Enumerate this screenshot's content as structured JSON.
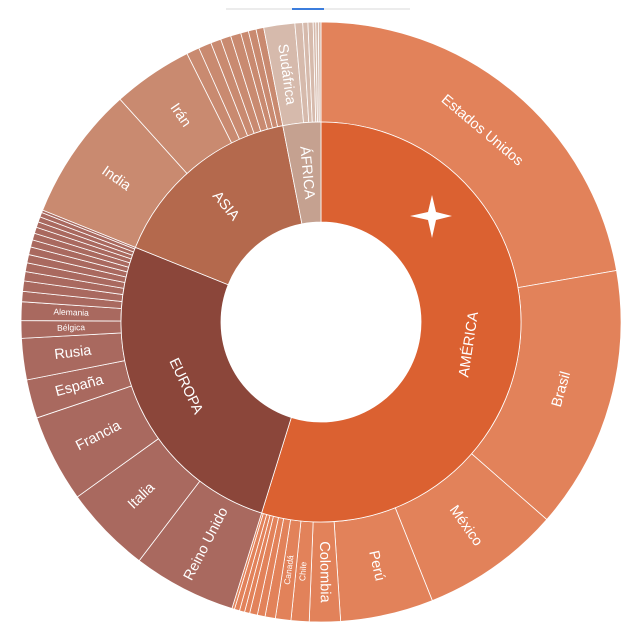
{
  "chart_data": {
    "type": "sunburst",
    "series": [
      {
        "name": "AMÉRICA",
        "color": "#db6131",
        "outer_color": "#e2825a",
        "children": [
          {
            "name": "Estados Unidos",
            "value": 80
          },
          {
            "name": "Brasil",
            "value": 51
          },
          {
            "name": "México",
            "value": 27
          },
          {
            "name": "Perú",
            "value": 18
          },
          {
            "name": "Colombia",
            "value": 6
          },
          {
            "name": "Chile",
            "value": 3.5
          },
          {
            "name": "Canadá",
            "value": 3
          },
          {
            "name": null,
            "value": 2
          },
          {
            "name": null,
            "value": 1.5
          },
          {
            "name": null,
            "value": 1.5
          },
          {
            "name": null,
            "value": 1
          },
          {
            "name": null,
            "value": 1
          },
          {
            "name": null,
            "value": 1
          },
          {
            "name": null,
            "value": 0.5
          }
        ]
      },
      {
        "name": "EUROPA",
        "color": "#8b463a",
        "outer_color": "#a9695f",
        "children": [
          {
            "name": "Reino Unido",
            "value": 20
          },
          {
            "name": "Italia",
            "value": 17
          },
          {
            "name": "Francia",
            "value": 17
          },
          {
            "name": "España",
            "value": 7.5
          },
          {
            "name": "Rusia",
            "value": 8
          },
          {
            "name": "Bélgica",
            "value": 3.4
          },
          {
            "name": "Alemania",
            "value": 3.6
          },
          {
            "name": null,
            "value": 2
          },
          {
            "name": null,
            "value": 2
          },
          {
            "name": null,
            "value": 1.8
          },
          {
            "name": null,
            "value": 1.7
          },
          {
            "name": null,
            "value": 1.6
          },
          {
            "name": null,
            "value": 1.5
          },
          {
            "name": null,
            "value": 1.4
          },
          {
            "name": null,
            "value": 1.3
          },
          {
            "name": null,
            "value": 1.2
          },
          {
            "name": null,
            "value": 1.1
          },
          {
            "name": null,
            "value": 1
          },
          {
            "name": null,
            "value": 0.9
          },
          {
            "name": null,
            "value": 0.5
          }
        ]
      },
      {
        "name": "ASIA",
        "color": "#b4694d",
        "outer_color": "#c98a70",
        "children": [
          {
            "name": "India",
            "value": 26
          },
          {
            "name": "Irán",
            "value": 15.5
          },
          {
            "name": null,
            "value": 2.5
          },
          {
            "name": null,
            "value": 2.5
          },
          {
            "name": null,
            "value": 2
          },
          {
            "name": null,
            "value": 2
          },
          {
            "name": null,
            "value": 2
          },
          {
            "name": null,
            "value": 1.5
          },
          {
            "name": null,
            "value": 1.5
          },
          {
            "name": null,
            "value": 1.5
          }
        ]
      },
      {
        "name": "ÁFRICA",
        "color": "#c5a190",
        "outer_color": "#d6baac",
        "children": [
          {
            "name": "Sudáfrica",
            "value": 6
          },
          {
            "name": null,
            "value": 1.5
          },
          {
            "name": null,
            "value": 1
          },
          {
            "name": null,
            "value": 1
          },
          {
            "name": null,
            "value": 0.5
          },
          {
            "name": null,
            "value": 0.5
          },
          {
            "name": null,
            "value": 0.5
          }
        ]
      }
    ]
  }
}
